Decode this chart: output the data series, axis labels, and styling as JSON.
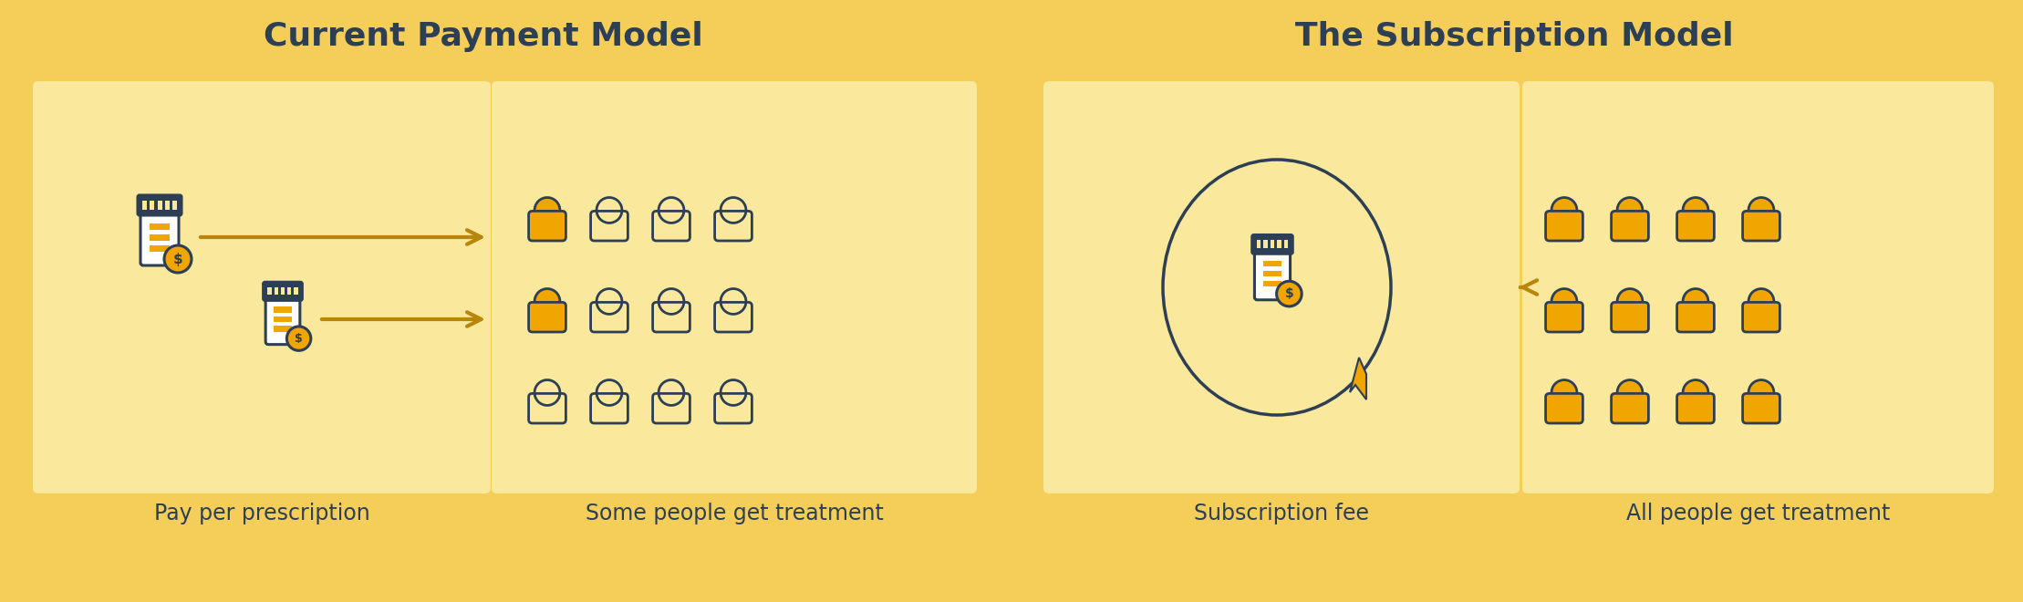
{
  "bg_color": "#F5CE5A",
  "panel_bg_light": "#FAE89C",
  "icon_color_gold": "#F0A500",
  "icon_color_dark": "#2D3F55",
  "text_color_dark": "#2D3F55",
  "arrow_color": "#B8860B",
  "left_title": "Current Payment Model",
  "right_title": "The Subscription Model",
  "left_label1": "Pay per prescription",
  "left_label2": "Some people get treatment",
  "right_label1": "Subscription fee",
  "right_label2": "All people get treatment",
  "title_fontsize": 26,
  "label_fontsize": 17
}
